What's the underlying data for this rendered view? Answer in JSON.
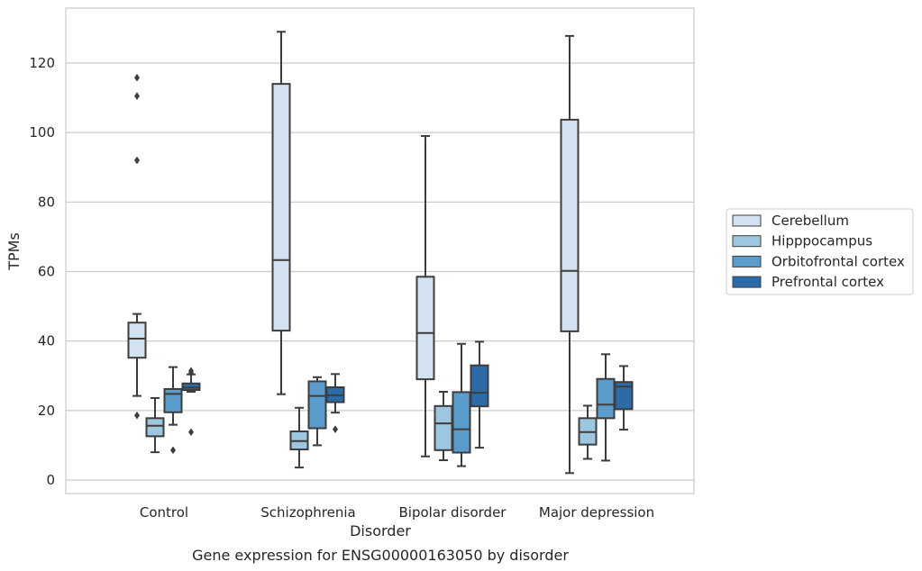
{
  "chart_data": {
    "type": "box",
    "caption": "Gene expression for ENSG00000163050 by disorder",
    "xlabel": "Disorder",
    "ylabel": "TPMs",
    "ylim": [
      -4,
      134
    ],
    "yticks": [
      0,
      20,
      40,
      60,
      80,
      100,
      120
    ],
    "grid": "horizontal",
    "legend_position": "right",
    "categories": [
      "Control",
      "Schizophrenia",
      "Bipolar disorder",
      "Major depression"
    ],
    "series": [
      {
        "name": "Cerebellum",
        "color": "#d2e2f1",
        "boxes": [
          {
            "whislo": 24.2,
            "q1": 35.2,
            "med": 40.7,
            "q3": 45.3,
            "whishi": 47.8,
            "fliers": [
              18.6,
              92.0,
              110.5,
              115.8
            ]
          },
          {
            "whislo": 24.7,
            "q1": 43.0,
            "med": 63.3,
            "q3": 114.0,
            "whishi": 129.0,
            "fliers": []
          },
          {
            "whislo": 6.8,
            "q1": 29.0,
            "med": 42.3,
            "q3": 58.5,
            "whishi": 99.0,
            "fliers": []
          },
          {
            "whislo": 2.0,
            "q1": 42.8,
            "med": 60.2,
            "q3": 103.7,
            "whishi": 127.8,
            "fliers": []
          }
        ]
      },
      {
        "name": "Hipppocampus",
        "color": "#9dc6df",
        "boxes": [
          {
            "whislo": 8.0,
            "q1": 12.6,
            "med": 15.6,
            "q3": 17.8,
            "whishi": 23.6,
            "fliers": []
          },
          {
            "whislo": 3.6,
            "q1": 8.8,
            "med": 11.2,
            "q3": 14.0,
            "whishi": 20.8,
            "fliers": []
          },
          {
            "whislo": 5.7,
            "q1": 8.6,
            "med": 16.3,
            "q3": 21.3,
            "whishi": 25.4,
            "fliers": []
          },
          {
            "whislo": 6.1,
            "q1": 10.2,
            "med": 13.8,
            "q3": 17.8,
            "whishi": 21.4,
            "fliers": []
          }
        ]
      },
      {
        "name": "Orbitofrontal cortex",
        "color": "#5a9dcc",
        "boxes": [
          {
            "whislo": 15.9,
            "q1": 19.5,
            "med": 24.8,
            "q3": 26.2,
            "whishi": 32.5,
            "fliers": [
              8.6
            ]
          },
          {
            "whislo": 10.0,
            "q1": 14.9,
            "med": 24.2,
            "q3": 28.4,
            "whishi": 29.6,
            "fliers": []
          },
          {
            "whislo": 4.0,
            "q1": 7.9,
            "med": 14.6,
            "q3": 25.3,
            "whishi": 39.2,
            "fliers": []
          },
          {
            "whislo": 5.6,
            "q1": 17.8,
            "med": 21.7,
            "q3": 29.1,
            "whishi": 36.2,
            "fliers": []
          }
        ]
      },
      {
        "name": "Prefrontal cortex",
        "color": "#2b6ba8",
        "boxes": [
          {
            "whislo": 25.4,
            "q1": 25.9,
            "med": 26.6,
            "q3": 27.8,
            "whishi": 30.4,
            "fliers": [
              13.8,
              30.8,
              31.4
            ]
          },
          {
            "whislo": 19.4,
            "q1": 22.4,
            "med": 24.4,
            "q3": 26.7,
            "whishi": 30.5,
            "fliers": [
              14.6
            ]
          },
          {
            "whislo": 9.3,
            "q1": 21.2,
            "med": 25.1,
            "q3": 33.0,
            "whishi": 39.8,
            "fliers": []
          },
          {
            "whislo": 14.5,
            "q1": 20.4,
            "med": 26.9,
            "q3": 28.2,
            "whishi": 32.8,
            "fliers": []
          }
        ]
      }
    ]
  }
}
